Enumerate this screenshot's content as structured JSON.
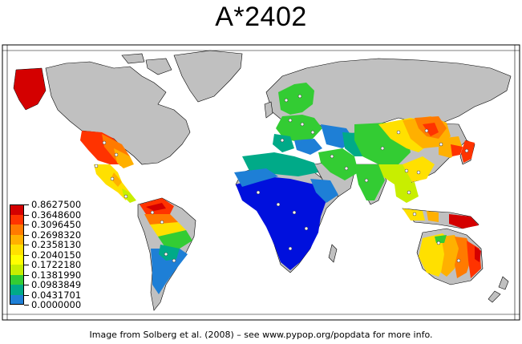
{
  "title": "A*2402",
  "legend": {
    "labels": [
      "0.8627500",
      "0.3648600",
      "0.3096450",
      "0.2698320",
      "0.2358130",
      "0.2040150",
      "0.1722180",
      "0.1381990",
      "0.0983849",
      "0.0431701",
      "0.0000000"
    ],
    "colors": [
      "#d40000",
      "#ff3300",
      "#ff7a00",
      "#ffb000",
      "#ffe000",
      "#ffff00",
      "#c8ee00",
      "#33cc33",
      "#00aa88",
      "#1e7fd6",
      "#0010dd"
    ]
  },
  "caption": "Image from Solberg et al. (2008) – see www.pypop.org/popdata for more info.",
  "colors": {
    "land_no_data": "#c0c0c0",
    "ocean": "#ffffff",
    "outline": "#000000"
  }
}
